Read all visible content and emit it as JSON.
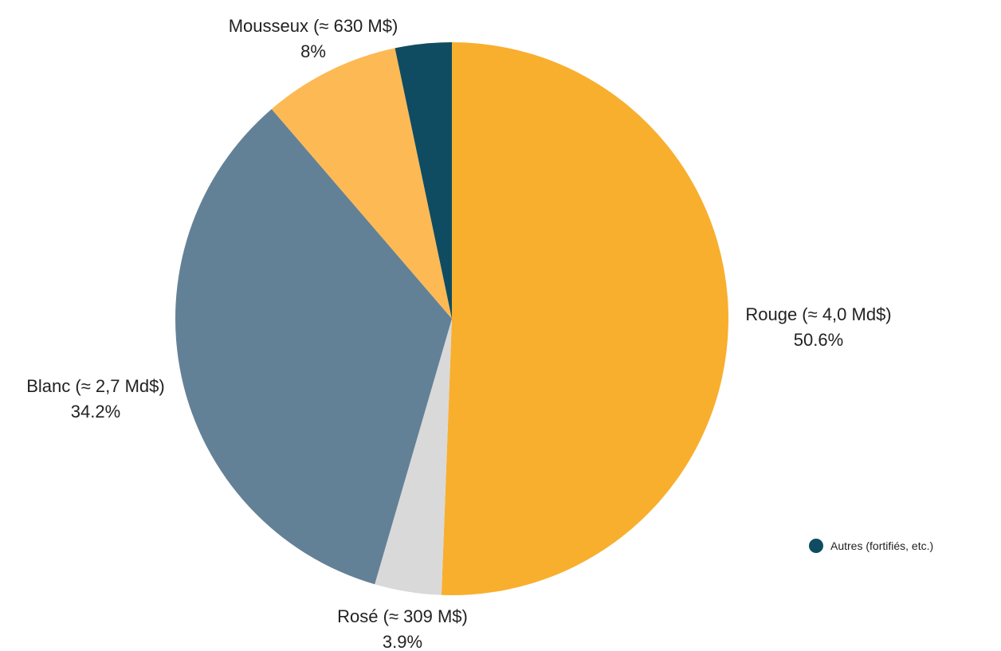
{
  "chart_data": {
    "type": "pie",
    "title": "",
    "slices": [
      {
        "name": "Rouge (≈ 4,0 Md$)",
        "value": 50.6,
        "value_label": "50.6%",
        "color": "#F8AF2E"
      },
      {
        "name": "Rosé (≈ 309 M$)",
        "value": 3.9,
        "value_label": "3.9%",
        "color": "#D9D9D9"
      },
      {
        "name": "Blanc (≈ 2,7 Md$)",
        "value": 34.2,
        "value_label": "34.2%",
        "color": "#638196"
      },
      {
        "name": "Mousseux (≈ 630 M$)",
        "value": 8.0,
        "value_label": "8%",
        "color": "#FDB954"
      },
      {
        "name": "Autres (fortifiés, etc.)",
        "value": 3.3,
        "value_label": "",
        "color": "#0F4C62"
      }
    ],
    "start_angle_deg": 90,
    "direction": "clockwise",
    "legend": {
      "position": "bottom-right",
      "entries": [
        {
          "label": "Autres (fortifiés, etc.)",
          "color": "#0F4C62"
        }
      ]
    }
  }
}
